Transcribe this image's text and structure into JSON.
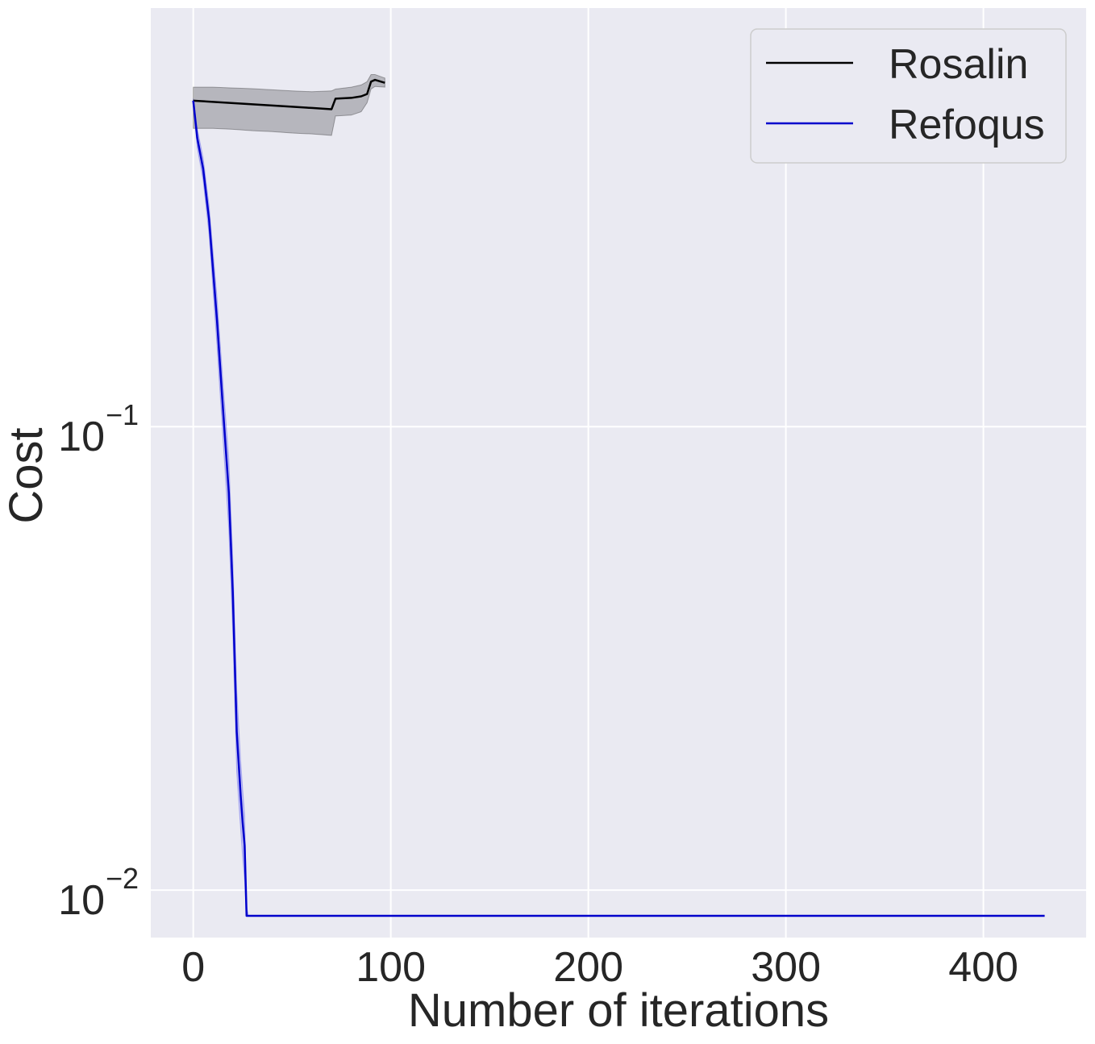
{
  "chart_data": {
    "type": "line",
    "xlabel": "Number of iterations",
    "ylabel": "Cost",
    "xlim": [
      -21.5,
      452
    ],
    "ylim": [
      0.0079,
      0.8
    ],
    "yscale": "log",
    "grid": true,
    "legend_position": "top-right",
    "x_ticks": [
      {
        "value": 0,
        "label": "0"
      },
      {
        "value": 100,
        "label": "100"
      },
      {
        "value": 200,
        "label": "200"
      },
      {
        "value": 300,
        "label": "300"
      },
      {
        "value": 400,
        "label": "400"
      }
    ],
    "y_ticks": [
      {
        "value": 0.1,
        "base": "10",
        "exp": "−1"
      },
      {
        "value": 0.01,
        "base": "10",
        "exp": "−2"
      }
    ],
    "series": [
      {
        "name": "Rosalin",
        "color": "#000000",
        "band_color": "#000000",
        "x": [
          0,
          10,
          20,
          30,
          40,
          50,
          60,
          70,
          72,
          80,
          85,
          88,
          90,
          92,
          97
        ],
        "y": [
          0.505,
          0.502,
          0.499,
          0.496,
          0.493,
          0.49,
          0.487,
          0.484,
          0.51,
          0.512,
          0.516,
          0.522,
          0.555,
          0.56,
          0.552
        ],
        "lower": [
          0.44,
          0.44,
          0.438,
          0.435,
          0.433,
          0.43,
          0.428,
          0.425,
          0.468,
          0.47,
          0.478,
          0.5,
          0.535,
          0.542,
          0.54
        ],
        "upper": [
          0.54,
          0.54,
          0.538,
          0.536,
          0.533,
          0.53,
          0.528,
          0.53,
          0.535,
          0.54,
          0.546,
          0.555,
          0.575,
          0.575,
          0.565
        ]
      },
      {
        "name": "Refoqus",
        "color": "#0000cc",
        "band_color": "#3333ee",
        "x": [
          0,
          2,
          5,
          8,
          12,
          15,
          18,
          20,
          22,
          24,
          25,
          26,
          27,
          28,
          30,
          50,
          100,
          200,
          300,
          400,
          431
        ],
        "y": [
          0.505,
          0.42,
          0.36,
          0.28,
          0.17,
          0.11,
          0.072,
          0.044,
          0.022,
          0.016,
          0.014,
          0.0125,
          0.0088,
          0.0088,
          0.0088,
          0.0088,
          0.0088,
          0.0088,
          0.0088,
          0.0088,
          0.0088
        ],
        "lower": [
          0.5,
          0.4,
          0.34,
          0.26,
          0.15,
          0.095,
          0.06,
          0.036,
          0.018,
          0.0135,
          0.0118,
          0.0105,
          0.0088,
          0.0088,
          0.0088,
          0.0088,
          0.0088,
          0.0088,
          0.0088,
          0.0088,
          0.0088
        ],
        "upper": [
          0.51,
          0.44,
          0.38,
          0.3,
          0.19,
          0.125,
          0.085,
          0.052,
          0.027,
          0.019,
          0.0165,
          0.0145,
          0.0092,
          0.0088,
          0.0088,
          0.0088,
          0.0088,
          0.0088,
          0.0088,
          0.0088,
          0.0088
        ]
      }
    ]
  }
}
